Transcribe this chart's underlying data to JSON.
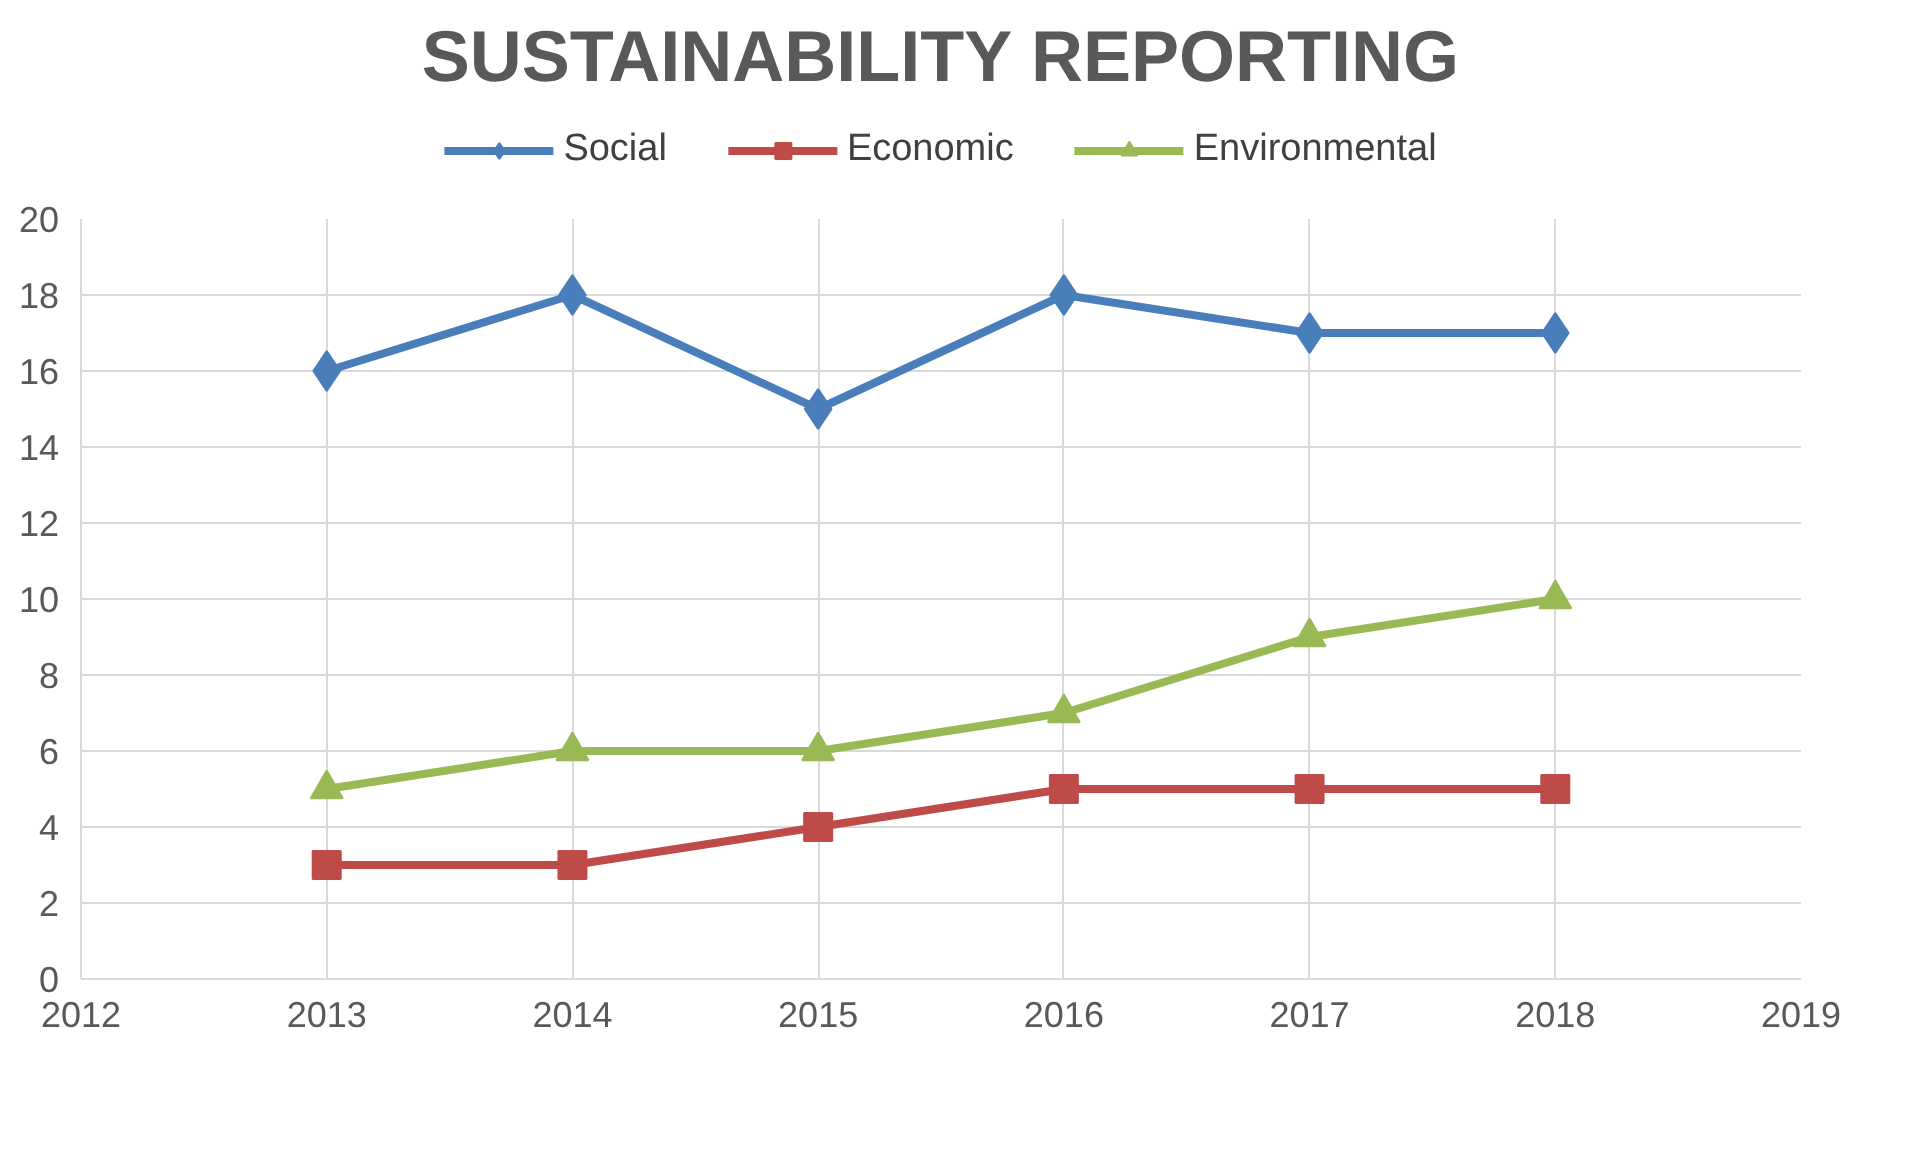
{
  "chart_data": {
    "type": "line",
    "title": "SUSTAINABILITY REPORTING",
    "x": [
      2013,
      2014,
      2015,
      2016,
      2017,
      2018
    ],
    "series": [
      {
        "name": "Social",
        "color": "#4a7ebb",
        "marker": "diamond",
        "values": [
          16,
          18,
          15,
          18,
          17,
          17
        ]
      },
      {
        "name": "Economic",
        "color": "#be4b48",
        "marker": "square",
        "values": [
          3,
          3,
          4,
          5,
          5,
          5
        ]
      },
      {
        "name": "Environmental",
        "color": "#98b954",
        "marker": "triangle",
        "values": [
          5,
          6,
          6,
          7,
          9,
          10
        ]
      }
    ],
    "xlim": [
      2012,
      2019
    ],
    "xticks": [
      2012,
      2013,
      2014,
      2015,
      2016,
      2017,
      2018,
      2019
    ],
    "ylim": [
      0,
      20
    ],
    "yticks": [
      0,
      2,
      4,
      6,
      8,
      10,
      12,
      14,
      16,
      18,
      20
    ],
    "grid": true,
    "legend": "top",
    "line_style": "solid"
  }
}
